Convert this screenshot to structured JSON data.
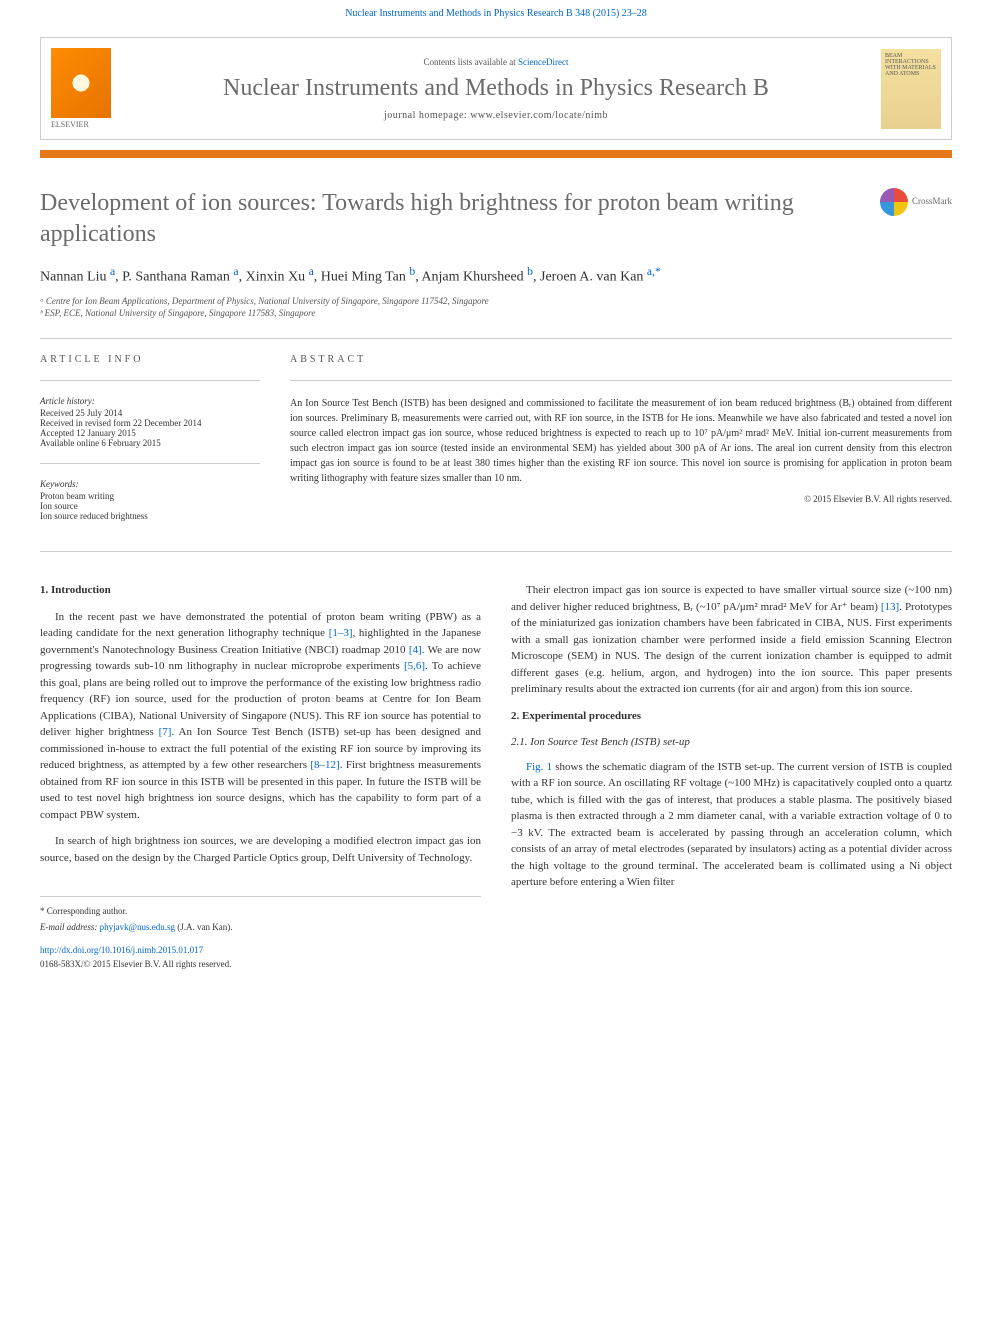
{
  "header": {
    "citation": "Nuclear Instruments and Methods in Physics Research B 348 (2015) 23–28",
    "contents_available": "Contents lists available at",
    "sciencedirect": "ScienceDirect",
    "journal_title": "Nuclear Instruments and Methods in Physics Research B",
    "homepage_label": "journal homepage: www.elsevier.com/locate/nimb",
    "elsevier_label": "ELSEVIER",
    "cover_text": "BEAM INTERACTIONS WITH MATERIALS AND ATOMS"
  },
  "article": {
    "title": "Development of ion sources: Towards high brightness for proton beam writing applications",
    "crossmark_label": "CrossMark",
    "authors_html": "Nannan Liu <sup>a</sup>, P. Santhana Raman <sup>a</sup>, Xinxin Xu <sup>a</sup>, Huei Ming Tan <sup>b</sup>, Anjam Khursheed <sup>b</sup>, Jeroen A. van Kan <sup>a,*</sup>",
    "affiliations": [
      "ᵃ Centre for Ion Beam Applications, Department of Physics, National University of Singapore, Singapore 117542, Singapore",
      "ᵇ ESP, ECE, National University of Singapore, Singapore 117583, Singapore"
    ]
  },
  "info": {
    "heading": "ARTICLE INFO",
    "history_label": "Article history:",
    "history_lines": [
      "Received 25 July 2014",
      "Received in revised form 22 December 2014",
      "Accepted 12 January 2015",
      "Available online 6 February 2015"
    ],
    "keywords_label": "Keywords:",
    "keywords": [
      "Proton beam writing",
      "Ion source",
      "Ion source reduced brightness"
    ]
  },
  "abstract": {
    "heading": "ABSTRACT",
    "text": "An Ion Source Test Bench (ISTB) has been designed and commissioned to facilitate the measurement of ion beam reduced brightness (Bᵣ) obtained from different ion sources. Preliminary Bᵣ measurements were carried out, with RF ion source, in the ISTB for He ions. Meanwhile we have also fabricated and tested a novel ion source called electron impact gas ion source, whose reduced brightness is expected to reach up to 10⁷ pA/μm² mrad² MeV. Initial ion-current measurements from such electron impact gas ion source (tested inside an environmental SEM) has yielded about 300 pA of Ar ions. The areal ion current density from this electron impact gas ion source is found to be at least 380 times higher than the existing RF ion source. This novel ion source is promising for application in proton beam writing lithography with feature sizes smaller than 10 nm.",
    "copyright": "© 2015 Elsevier B.V. All rights reserved."
  },
  "body": {
    "intro_heading": "1. Introduction",
    "intro_p1": "In the recent past we have demonstrated the potential of proton beam writing (PBW) as a leading candidate for the next generation lithography technique [1–3], highlighted in the Japanese government's Nanotechnology Business Creation Initiative (NBCI) roadmap 2010 [4]. We are now progressing towards sub-10 nm lithography in nuclear microprobe experiments [5,6]. To achieve this goal, plans are being rolled out to improve the performance of the existing low brightness radio frequency (RF) ion source, used for the production of proton beams at Centre for Ion Beam Applications (CIBA), National University of Singapore (NUS). This RF ion source has potential to deliver higher brightness [7]. An Ion Source Test Bench (ISTB) set-up has been designed and commissioned in-house to extract the full potential of the existing RF ion source by improving its reduced brightness, as attempted by a few other researchers [8–12]. First brightness measurements obtained from RF ion source in this ISTB will be presented in this paper. In future the ISTB will be used to test novel high brightness ion source designs, which has the capability to form part of a compact PBW system.",
    "intro_p2": "In search of high brightness ion sources, we are developing a modified electron impact gas ion source, based on the design by the Charged Particle Optics group, Delft University of Technology.",
    "col2_p1": "Their electron impact gas ion source is expected to have smaller virtual source size (~100 nm) and deliver higher reduced brightness, Bᵣ (~10⁷ pA/μm² mrad² MeV for Ar⁺ beam) [13]. Prototypes of the miniaturized gas ionization chambers have been fabricated in CIBA, NUS. First experiments with a small gas ionization chamber were performed inside a field emission Scanning Electron Microscope (SEM) in NUS. The design of the current ionization chamber is equipped to admit different gases (e.g. helium, argon, and hydrogen) into the ion source. This paper presents preliminary results about the extracted ion currents (for air and argon) from this ion source.",
    "exp_heading": "2. Experimental procedures",
    "exp_sub": "2.1. Ion Source Test Bench (ISTB) set-up",
    "exp_p1": "Fig. 1 shows the schematic diagram of the ISTB set-up. The current version of ISTB is coupled with a RF ion source. An oscillating RF voltage (~100 MHz) is capacitatively coupled onto a quartz tube, which is filled with the gas of interest, that produces a stable plasma. The positively biased plasma is then extracted through a 2 mm diameter canal, with a variable extraction voltage of 0 to −3 kV. The extracted beam is accelerated by passing through an acceleration column, which consists of an array of metal electrodes (separated by insulators) acting as a potential divider across the high voltage to the ground terminal. The accelerated beam is collimated using a Ni object aperture before entering a Wien filter"
  },
  "footer": {
    "corresponding_label": "* Corresponding author.",
    "email_label": "E-mail address:",
    "email": "phyjavk@nus.edu.sg",
    "email_name": "(J.A. van Kan).",
    "doi": "http://dx.doi.org/10.1016/j.nimb.2015.01.017",
    "issn_line": "0168-583X/© 2015 Elsevier B.V. All rights reserved."
  },
  "colors": {
    "orange_bar": "#e67817",
    "link_blue": "#0066cc",
    "title_gray": "#6b6b6b",
    "text": "#333333"
  }
}
